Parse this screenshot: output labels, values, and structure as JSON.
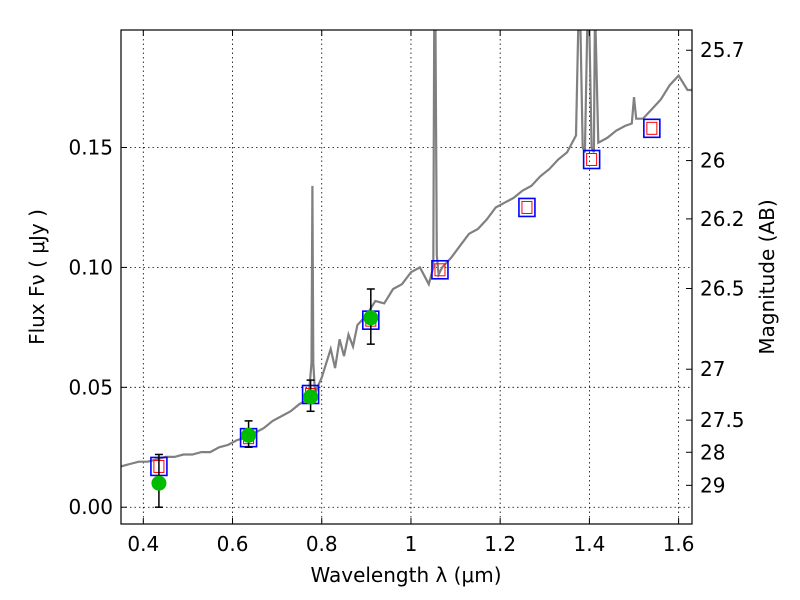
{
  "chart_data": {
    "type": "line",
    "xlabel": "Wavelength  λ (μm)",
    "ylabel": "Flux  Fν ( μJy )",
    "y2label": "Magnitude (AB)",
    "xlim": [
      0.35,
      1.63
    ],
    "ylim": [
      -0.007,
      0.199
    ],
    "grid": true,
    "x_ticks": [
      0.4,
      0.6,
      0.8,
      1.0,
      1.2,
      1.4,
      1.6
    ],
    "x_tick_labels": [
      "0.4",
      "0.6",
      "0.8",
      "1",
      "1.2",
      "1.4",
      "1.6"
    ],
    "y_ticks": [
      0.0,
      0.05,
      0.1,
      0.15
    ],
    "y_tick_labels": [
      "0.00",
      "0.05",
      "0.10",
      "0.15"
    ],
    "mag_ticks": [
      25.7,
      26,
      26.2,
      26.5,
      27,
      27.5,
      28,
      29
    ],
    "mag_tick_labels": [
      "25.7",
      "26",
      "26.2",
      "26.5",
      "27",
      "27.5",
      "28",
      "29"
    ],
    "colors": {
      "sed": "#808080",
      "observed": "#00bb00",
      "model_box": "#0000ff",
      "model_inner": "#ff0000",
      "errorbar": "#000000",
      "grid": "#000000"
    },
    "series": [
      {
        "kind": "sed",
        "x": [
          0.35,
          0.37,
          0.39,
          0.41,
          0.43,
          0.45,
          0.47,
          0.49,
          0.51,
          0.53,
          0.55,
          0.57,
          0.59,
          0.61,
          0.63,
          0.65,
          0.67,
          0.69,
          0.71,
          0.73,
          0.75,
          0.77,
          0.777,
          0.779,
          0.781,
          0.785,
          0.79,
          0.8,
          0.81,
          0.82,
          0.83,
          0.84,
          0.85,
          0.86,
          0.87,
          0.88,
          0.9,
          0.92,
          0.94,
          0.96,
          0.98,
          1.0,
          1.02,
          1.04,
          1.05,
          1.052,
          1.055,
          1.058,
          1.062,
          1.07,
          1.09,
          1.11,
          1.13,
          1.15,
          1.17,
          1.19,
          1.21,
          1.23,
          1.25,
          1.27,
          1.29,
          1.31,
          1.33,
          1.35,
          1.37,
          1.375,
          1.38,
          1.385,
          1.39,
          1.395,
          1.4,
          1.405,
          1.41,
          1.412,
          1.414,
          1.42,
          1.44,
          1.46,
          1.48,
          1.495,
          1.5,
          1.505,
          1.52,
          1.54,
          1.56,
          1.58,
          1.6,
          1.62,
          1.63
        ],
        "y": [
          0.017,
          0.018,
          0.019,
          0.019,
          0.02,
          0.021,
          0.021,
          0.022,
          0.022,
          0.023,
          0.023,
          0.025,
          0.026,
          0.028,
          0.029,
          0.031,
          0.033,
          0.036,
          0.038,
          0.04,
          0.043,
          0.045,
          0.06,
          0.134,
          0.06,
          0.047,
          0.05,
          0.054,
          0.06,
          0.066,
          0.058,
          0.07,
          0.063,
          0.072,
          0.067,
          0.076,
          0.08,
          0.086,
          0.085,
          0.091,
          0.093,
          0.098,
          0.1,
          0.093,
          0.1,
          0.199,
          0.199,
          0.105,
          0.097,
          0.1,
          0.104,
          0.109,
          0.114,
          0.116,
          0.12,
          0.125,
          0.127,
          0.129,
          0.132,
          0.134,
          0.138,
          0.141,
          0.145,
          0.148,
          0.155,
          0.199,
          0.199,
          0.15,
          0.148,
          0.199,
          0.199,
          0.15,
          0.148,
          0.199,
          0.199,
          0.152,
          0.154,
          0.157,
          0.159,
          0.16,
          0.171,
          0.162,
          0.162,
          0.166,
          0.17,
          0.176,
          0.18,
          0.174,
          0.174
        ]
      },
      {
        "kind": "model",
        "x": [
          0.435,
          0.636,
          0.775,
          0.91,
          1.065,
          1.26,
          1.405,
          1.54
        ],
        "y": [
          0.017,
          0.029,
          0.047,
          0.078,
          0.099,
          0.125,
          0.145,
          0.158
        ]
      },
      {
        "kind": "observed",
        "x": [
          0.435,
          0.636,
          0.775,
          0.91
        ],
        "y": [
          0.01,
          0.03,
          0.046,
          0.079
        ],
        "err_low": [
          0.01,
          0.005,
          0.006,
          0.011
        ],
        "err_high": [
          0.012,
          0.006,
          0.007,
          0.012
        ]
      }
    ]
  }
}
